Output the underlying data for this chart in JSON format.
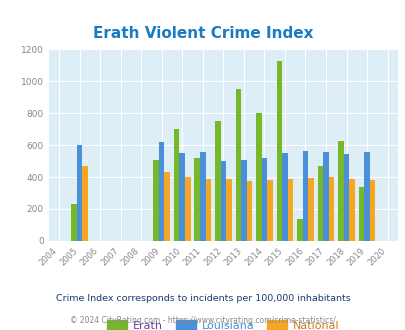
{
  "title": "Erath Violent Crime Index",
  "years": [
    2004,
    2005,
    2006,
    2007,
    2008,
    2009,
    2010,
    2011,
    2012,
    2013,
    2014,
    2015,
    2016,
    2017,
    2018,
    2019,
    2020
  ],
  "data_years": [
    2005,
    2009,
    2010,
    2011,
    2012,
    2013,
    2014,
    2015,
    2016,
    2017,
    2018,
    2019
  ],
  "erath": [
    230,
    510,
    700,
    520,
    750,
    950,
    800,
    1130,
    140,
    470,
    625,
    340
  ],
  "louisiana": [
    600,
    620,
    550,
    560,
    500,
    510,
    520,
    550,
    565,
    555,
    545,
    555
  ],
  "national": [
    470,
    430,
    400,
    390,
    390,
    375,
    380,
    390,
    395,
    400,
    385,
    380
  ],
  "erath_color": "#76b82a",
  "louisiana_color": "#4a90d9",
  "national_color": "#f5a623",
  "erath_label_color": "#6b3a9e",
  "louisiana_label_color": "#4a90d9",
  "national_label_color": "#c87c1a",
  "bg_color": "#ddeef6",
  "ylim": [
    0,
    1200
  ],
  "yticks": [
    0,
    200,
    400,
    600,
    800,
    1000,
    1200
  ],
  "subtitle": "Crime Index corresponds to incidents per 100,000 inhabitants",
  "footer": "© 2024 CityRating.com - https://www.cityrating.com/crime-statistics/",
  "title_color": "#1a7bc4",
  "subtitle_color": "#1a3a6e",
  "footer_color": "#888888",
  "bar_width": 0.27,
  "tick_color": "#888888"
}
